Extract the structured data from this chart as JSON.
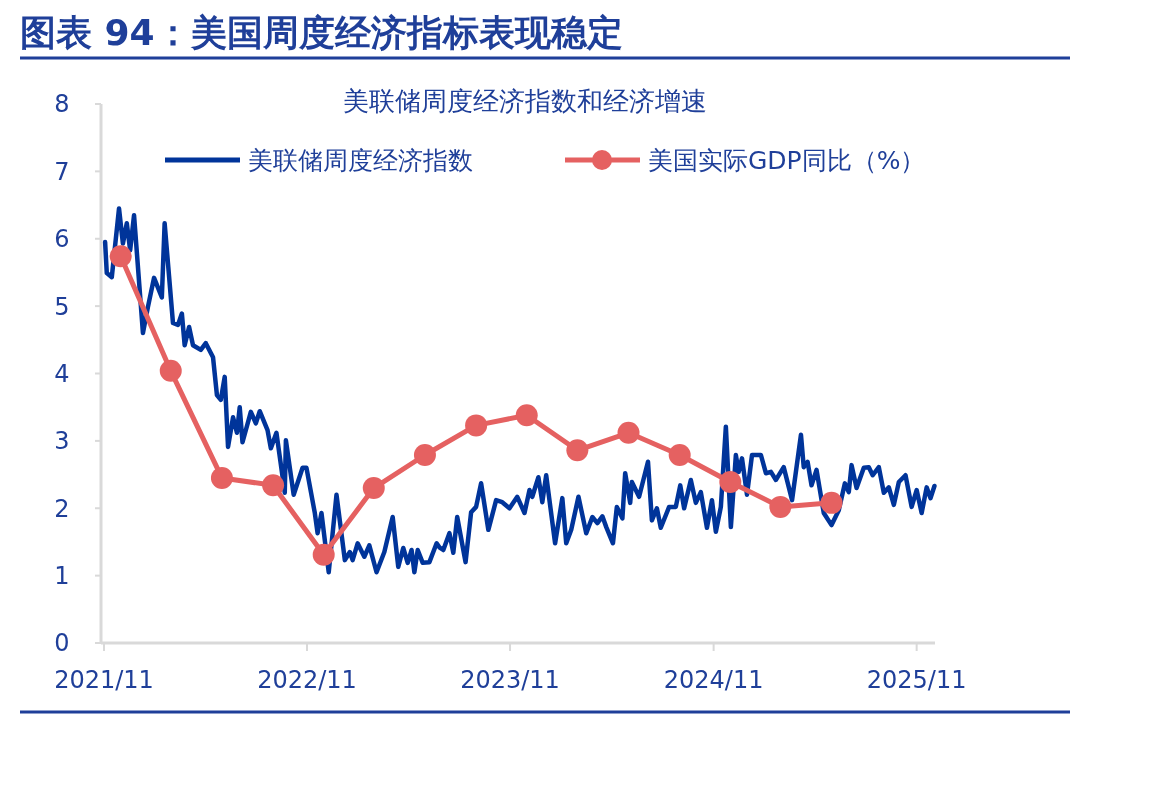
{
  "chart_data": {
    "type": "line",
    "title": "图表 94：美国周度经济指标表现稳定",
    "subtitle": "美联储周度经济指数和经济增速",
    "xlim": [
      "2021-11-01",
      "2025-12-04"
    ],
    "xticks": [
      {
        "value": "2021-11-01",
        "label": "2021/11"
      },
      {
        "value": "2022-11-01",
        "label": "2022/11"
      },
      {
        "value": "2023-11-01",
        "label": "2023/11"
      },
      {
        "value": "2024-11-01",
        "label": "2024/11"
      },
      {
        "value": "2025-11-01",
        "label": "2025/11"
      }
    ],
    "ylim": [
      0,
      8
    ],
    "yticks": [
      0,
      1,
      2,
      3,
      4,
      5,
      6,
      7,
      8
    ],
    "grid": false,
    "legend": "top",
    "series": [
      {
        "name": "美联储周度经济指数",
        "color": "#00349a",
        "marker": "none",
        "x": [
          "2021-11-03",
          "2021-11-06",
          "2021-11-15",
          "2021-11-28",
          "2021-12-05",
          "2021-12-12",
          "2021-12-18",
          "2021-12-25",
          "2022-01-10",
          "2022-01-19",
          "2022-01-30",
          "2022-02-13",
          "2022-02-18",
          "2022-03-05",
          "2022-03-14",
          "2022-03-21",
          "2022-03-26",
          "2022-04-03",
          "2022-04-10",
          "2022-04-24",
          "2022-05-03",
          "2022-05-16",
          "2022-05-23",
          "2022-05-30",
          "2022-06-06",
          "2022-06-12",
          "2022-06-21",
          "2022-06-28",
          "2022-07-03",
          "2022-07-08",
          "2022-07-23",
          "2022-08-01",
          "2022-08-08",
          "2022-08-22",
          "2022-08-28",
          "2022-09-07",
          "2022-09-22",
          "2022-09-24",
          "2022-10-08",
          "2022-10-24",
          "2022-10-31",
          "2022-11-15",
          "2022-11-20",
          "2022-11-27",
          "2022-12-10",
          "2022-12-24",
          "2023-01-08",
          "2023-01-17",
          "2023-01-22",
          "2023-01-31",
          "2023-02-12",
          "2023-02-21",
          "2023-03-06",
          "2023-03-20",
          "2023-04-04",
          "2023-04-14",
          "2023-04-23",
          "2023-05-01",
          "2023-05-08",
          "2023-05-13",
          "2023-05-19",
          "2023-05-28",
          "2023-06-09",
          "2023-06-22",
          "2023-06-27",
          "2023-07-04",
          "2023-07-15",
          "2023-07-22",
          "2023-07-29",
          "2023-08-13",
          "2023-08-23",
          "2023-09-01",
          "2023-09-10",
          "2023-09-23",
          "2023-10-07",
          "2023-10-18",
          "2023-10-31",
          "2023-11-14",
          "2023-11-27",
          "2023-12-06",
          "2023-12-11",
          "2023-12-22",
          "2023-12-29",
          "2024-01-05",
          "2024-01-21",
          "2024-02-03",
          "2024-02-10",
          "2024-02-19",
          "2024-03-03",
          "2024-03-17",
          "2024-03-28",
          "2024-04-06",
          "2024-04-15",
          "2024-04-22",
          "2024-05-04",
          "2024-05-11",
          "2024-05-21",
          "2024-05-26",
          "2024-06-04",
          "2024-06-07",
          "2024-06-20",
          "2024-07-06",
          "2024-07-13",
          "2024-07-22",
          "2024-07-29",
          "2024-08-13",
          "2024-08-25",
          "2024-09-02",
          "2024-09-09",
          "2024-09-21",
          "2024-09-30",
          "2024-10-09",
          "2024-10-20",
          "2024-10-29",
          "2024-11-05",
          "2024-11-14",
          "2024-11-23",
          "2024-12-02",
          "2024-12-11",
          "2024-12-16",
          "2024-12-22",
          "2024-12-31",
          "2025-01-09",
          "2025-01-25",
          "2025-02-03",
          "2025-02-12",
          "2025-02-21",
          "2025-03-07",
          "2025-03-22",
          "2025-04-07",
          "2025-04-12",
          "2025-04-19",
          "2025-04-26",
          "2025-05-05",
          "2025-05-18",
          "2025-06-01",
          "2025-06-14",
          "2025-06-25",
          "2025-07-02",
          "2025-07-07",
          "2025-07-16",
          "2025-07-29",
          "2025-08-07",
          "2025-08-14",
          "2025-08-25",
          "2025-09-03",
          "2025-09-12",
          "2025-09-21",
          "2025-09-30",
          "2025-10-12",
          "2025-10-23",
          "2025-11-01",
          "2025-11-10",
          "2025-11-19",
          "2025-11-26",
          "2025-12-03"
        ],
        "values": [
          5.95,
          5.49,
          5.43,
          6.45,
          5.93,
          6.23,
          5.83,
          6.35,
          4.6,
          4.99,
          5.42,
          5.13,
          6.23,
          4.75,
          4.72,
          4.89,
          4.42,
          4.69,
          4.42,
          4.35,
          4.45,
          4.24,
          3.68,
          3.61,
          3.95,
          2.91,
          3.35,
          3.12,
          3.5,
          2.98,
          3.43,
          3.26,
          3.44,
          3.16,
          2.89,
          3.12,
          2.23,
          3.01,
          2.2,
          2.6,
          2.6,
          1.93,
          1.63,
          1.93,
          1.05,
          2.2,
          1.23,
          1.35,
          1.23,
          1.48,
          1.28,
          1.45,
          1.05,
          1.35,
          1.87,
          1.13,
          1.41,
          1.19,
          1.38,
          1.05,
          1.38,
          1.19,
          1.2,
          1.48,
          1.42,
          1.38,
          1.63,
          1.34,
          1.87,
          1.2,
          1.94,
          2.02,
          2.37,
          1.68,
          2.12,
          2.09,
          2.0,
          2.17,
          1.93,
          2.27,
          2.17,
          2.46,
          2.09,
          2.49,
          1.48,
          2.15,
          1.48,
          1.68,
          2.17,
          1.63,
          1.87,
          1.78,
          1.88,
          1.72,
          1.48,
          2.02,
          1.85,
          2.52,
          2.08,
          2.39,
          2.17,
          2.69,
          1.82,
          2.0,
          1.71,
          2.02,
          2.02,
          2.34,
          2.0,
          2.42,
          2.08,
          2.24,
          1.71,
          2.12,
          1.65,
          2.02,
          3.21,
          1.72,
          2.79,
          2.54,
          2.74,
          2.2,
          2.79,
          2.79,
          2.52,
          2.54,
          2.42,
          2.61,
          2.12,
          3.09,
          2.61,
          2.69,
          2.34,
          2.57,
          1.93,
          1.75,
          1.97,
          2.37,
          2.24,
          2.64,
          2.3,
          2.6,
          2.61,
          2.49,
          2.61,
          2.23,
          2.31,
          2.05,
          2.39,
          2.49,
          2.02,
          2.27,
          1.93,
          2.31,
          2.15,
          2.33
        ]
      },
      {
        "name": "美国实际GDP同比（%）",
        "color": "#e56161",
        "marker": "circle",
        "x": [
          "2021-12",
          "2022-03",
          "2022-06",
          "2022-09",
          "2022-12",
          "2023-03",
          "2023-06",
          "2023-09",
          "2023-12",
          "2024-03",
          "2024-06",
          "2024-09",
          "2024-12",
          "2025-03",
          "2025-06"
        ],
        "values": [
          5.74,
          4.04,
          2.45,
          2.34,
          1.31,
          2.3,
          2.79,
          3.23,
          3.38,
          2.86,
          3.12,
          2.79,
          2.39,
          2.02,
          2.08
        ]
      }
    ]
  }
}
